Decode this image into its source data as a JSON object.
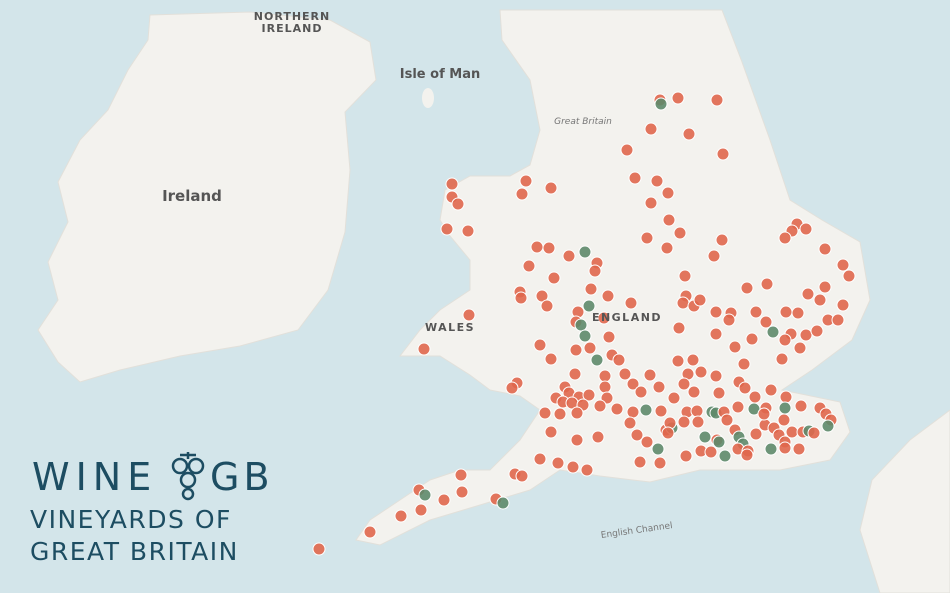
{
  "map": {
    "labels": {
      "northern_ireland": [
        "NORTHERN",
        "IRELAND"
      ],
      "isle_of_man": "Isle of Man",
      "great_britain": "Great Britain",
      "ireland": "Ireland",
      "wales": "WALES",
      "england": "ENGLAND",
      "english_channel": "English Channel"
    }
  },
  "logo": {
    "word_left": "WINE",
    "word_right": "GB",
    "tagline": [
      "VINEYARDS OF",
      "GREAT BRITAIN"
    ]
  }
}
